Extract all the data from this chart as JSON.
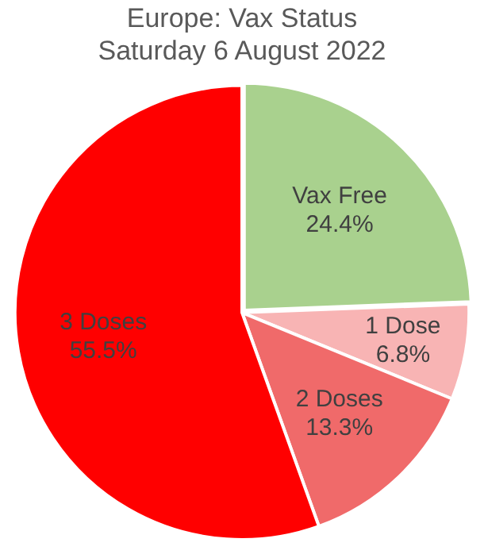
{
  "chart_data": {
    "type": "pie",
    "title": "Europe: Vax Status",
    "subtitle": "Saturday 6 August 2022",
    "categories": [
      "Vax Free",
      "1 Dose",
      "2 Doses",
      "3 Doses"
    ],
    "values": [
      24.4,
      6.8,
      13.3,
      55.5
    ],
    "colors": [
      "#a9d18e",
      "#f8b4b4",
      "#f06a6a",
      "#ff0000"
    ],
    "value_labels": [
      "24.4%",
      "6.8%",
      "13.3%",
      "55.5%"
    ],
    "legend": false
  }
}
